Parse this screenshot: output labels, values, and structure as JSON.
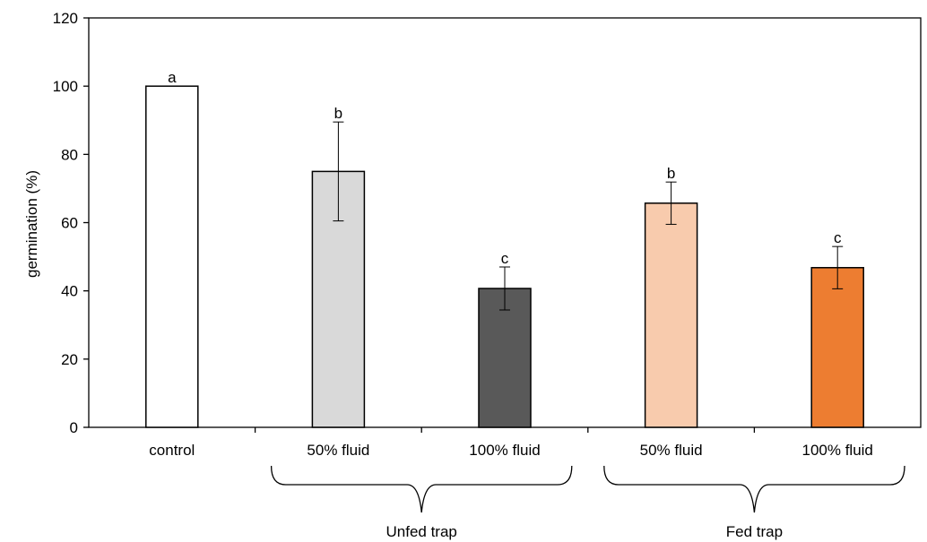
{
  "chart_data": {
    "type": "bar",
    "title": "",
    "xlabel": "",
    "ylabel": "germination (%)",
    "ylim": [
      0,
      120
    ],
    "yticks": [
      0,
      20,
      40,
      60,
      80,
      100,
      120
    ],
    "grid": false,
    "legend": "none",
    "categories": [
      "control",
      "50% fluid",
      "100% fluid",
      "50% fluid",
      "100% fluid"
    ],
    "values": [
      100,
      75,
      40.7,
      65.7,
      46.8
    ],
    "errors": [
      0,
      14.5,
      6.3,
      6.2,
      6.2
    ],
    "significance": [
      "a",
      "b",
      "c",
      "b",
      "c"
    ],
    "colors": [
      "#ffffff",
      "#d9d9d9",
      "#595959",
      "#f8cbad",
      "#ed7d31"
    ],
    "groups": [
      {
        "label": "Unfed trap",
        "from": 1,
        "to": 2
      },
      {
        "label": "Fed trap",
        "from": 3,
        "to": 4
      }
    ]
  }
}
